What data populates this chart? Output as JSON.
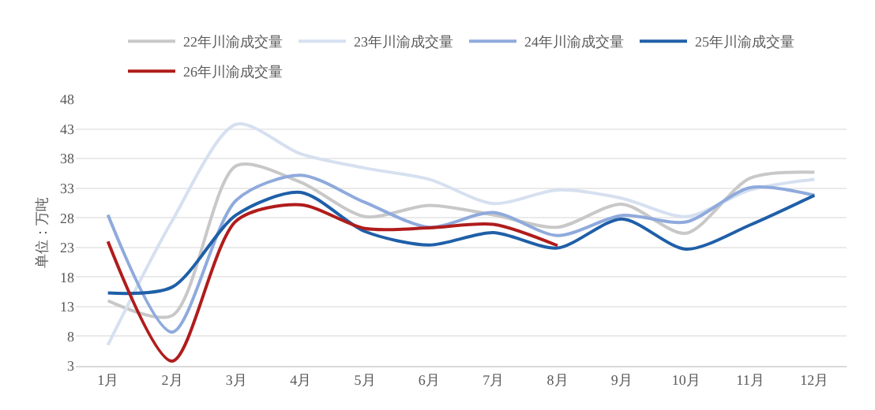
{
  "chart_data": {
    "type": "line",
    "ylabel": "单位：万吨",
    "categories": [
      "1月",
      "2月",
      "3月",
      "4月",
      "5月",
      "6月",
      "7月",
      "8月",
      "9月",
      "10月",
      "11月",
      "12月"
    ],
    "series": [
      {
        "name": "22年川渝成交量",
        "color": "#c8c8c8",
        "values": [
          14,
          11.5,
          36.8,
          34,
          28.2,
          30.1,
          28.5,
          26.4,
          30.3,
          25.4,
          34.7,
          35.7
        ]
      },
      {
        "name": "23年川渝成交量",
        "color": "#d6e0f0",
        "values": [
          6.5,
          27.5,
          43.8,
          38.8,
          36.4,
          34.5,
          30.4,
          32.7,
          31.3,
          28.2,
          32.7,
          34.5
        ]
      },
      {
        "name": "24年川渝成交量",
        "color": "#8faadc",
        "values": [
          28.5,
          8.7,
          31,
          35.2,
          30.6,
          26.4,
          28.9,
          25,
          28.4,
          27.3,
          33.1,
          31.8
        ]
      },
      {
        "name": "25年川渝成交量",
        "color": "#1f5fa8",
        "values": [
          15.3,
          16.3,
          28.5,
          32.3,
          25.7,
          23.4,
          25.5,
          22.9,
          27.8,
          22.7,
          26.8,
          31.8
        ]
      },
      {
        "name": "26年川渝成交量",
        "color": "#b01c1c",
        "values": [
          24,
          3.8,
          27.5,
          30.2,
          26.2,
          26.3,
          26.9,
          23.3,
          null,
          null,
          null,
          null
        ]
      }
    ],
    "ylim": [
      3,
      48
    ],
    "yticks": [
      3,
      8,
      13,
      18,
      23,
      28,
      33,
      38,
      43,
      48
    ],
    "grid": "y",
    "legend": "top",
    "marker": "none",
    "line_style": "solid"
  }
}
